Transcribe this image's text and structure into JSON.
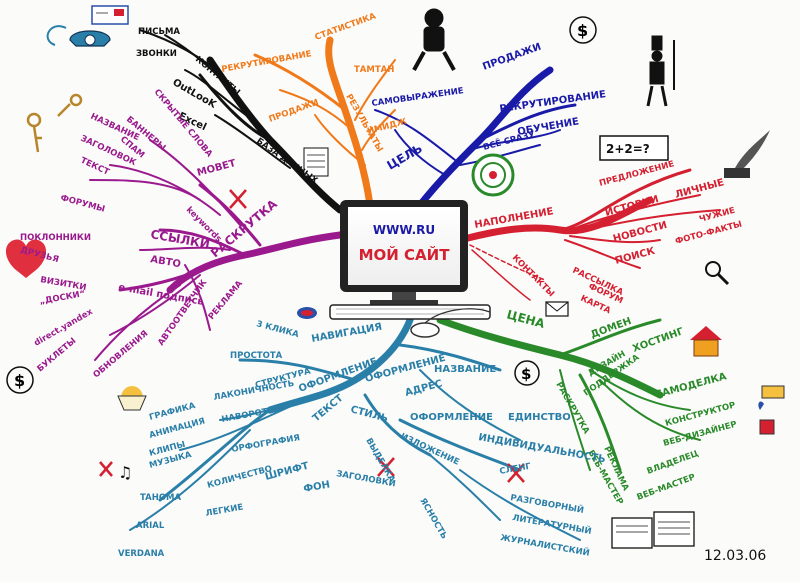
{
  "center": {
    "url": "WWW.RU",
    "title": "МОЙ САЙТ"
  },
  "decor": {
    "formula": "2+2=?",
    "date": "12.03.06"
  },
  "branches": {
    "contacts": {
      "items": [
        "ПИСЬМА",
        "ЗВОНКИ",
        "КОНТАКТЫ",
        "OutLooK",
        "Excel",
        "БАЗА ДАННЫХ"
      ]
    },
    "statistics": {
      "items": [
        "СТАТИСТИКА",
        "РЕКРУТИРОВАНИЕ",
        "ТАМТАН",
        "ПРОДАЖИ",
        "РЕЗУЛЬТАТЫ",
        "ИМИДЖ"
      ]
    },
    "goal": {
      "label": "ЦЕЛЬ",
      "items": [
        "ПРОДАЖИ",
        "РЕКРУТИРОВАНИЕ",
        "САМОВЫРАЖЕНИЕ",
        "ОБУЧЕНИЕ",
        "ВСЁ СРАЗУ"
      ]
    },
    "content": {
      "label": "НАПОЛНЕНИЕ",
      "items": [
        "ПРЕДЛОЖЕНИЕ",
        "ИСТОРИИ",
        "ЛИЧНЫЕ",
        "НОВОСТИ",
        "ЧУЖИЕ",
        "ФОТО-ФАКТЫ",
        "ПОИСК",
        "РАССЫЛКА",
        "ФОРУМ",
        "КАРТА",
        "КОНТАКТЫ"
      ]
    },
    "promotion": {
      "label": "РАСКРУТКА",
      "items": [
        "НАЗВАНИЕ",
        "ЗАГОЛОВОК",
        "ТЕКСТ",
        "БАННЕРЫ",
        "СПАМ",
        "СКРЫТЫЕ СЛОВА",
        "МОВЕТ",
        "keywords",
        "ФОРУМЫ",
        "ПОКЛОННИКИ",
        "ДРУЗЬЯ",
        "ССЫЛКИ",
        "АВТО",
        "ВИЗИТКИ",
        "„ДОСКИ“",
        "e-mail подпись",
        "direct.yandex",
        "БУКЛЕТЫ",
        "ОБНОВЛЕНИЯ",
        "АВТООТВЕТЧИК",
        "РЕКЛАМА"
      ]
    },
    "price": {
      "label": "ЦЕНА",
      "items": [
        "ДОМЕН",
        "ХОСТИНГ",
        "ДИЗАЙН",
        "ПОДДЕРЖКА",
        "РАСКРУТКА",
        "САМОДЕЛКА",
        "КОНСТРУКТОР",
        "ВЕБ-ДИЗАЙНЕР",
        "ВЛАДЕЛЕЦ",
        "ВЕБ-МАСТЕР",
        "ВЕБ-МАСТЕР",
        "РЕКЛАМА"
      ]
    },
    "design": {
      "label": "ОФОРМЛЕНИЕ",
      "items": [
        "3 КЛИКА",
        "НАВИГАЦИЯ",
        "ПРОСТОТА",
        "СТРУКТУРА",
        "ЛАКОНИЧНОСТЬ",
        "ГРАФИКА",
        "АНИМАЦИЯ",
        "КЛИПЫ",
        "МУЗЫКА",
        "НАВОРОТЫ",
        "ОРФОГРАФИЯ",
        "ТЕКСТ",
        "КОЛИЧЕСТВО",
        "ШРИФТ",
        "ФОН",
        "TAHOMA",
        "ЛЕГКИЕ",
        "ARIAL",
        "VERDANA",
        "ОФОРМЛЕНИЕ",
        "НАЗВАНИЕ",
        "АДРЕС",
        "СТИЛЬ",
        "ОФОРМЛЕНИЕ",
        "ЕДИНСТВО",
        "ИНДИВИДУАЛЬНОСТЬ",
        "ВЫДЕЛКА",
        "ИЗЛОЖЕНИЕ",
        "ЗАГОЛОВКИ",
        "СЛЕНГ",
        "ЯСНОСТЬ",
        "РАЗГОВОРНЫЙ",
        "ЛИТЕРАТУРНЫЙ",
        "ЖУРНАЛИСТСКИЙ"
      ]
    }
  }
}
